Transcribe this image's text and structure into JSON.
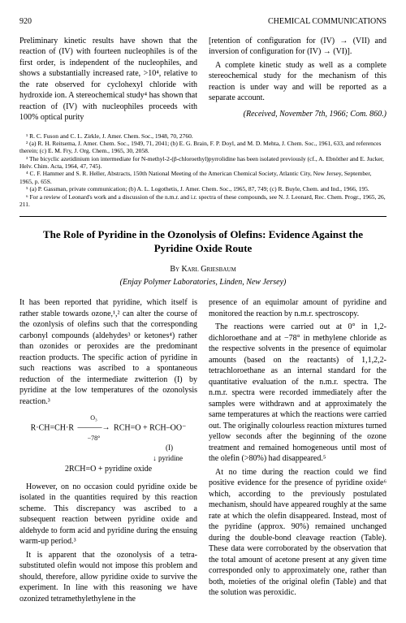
{
  "header": {
    "page": "920",
    "journal": "CHEMICAL COMMUNICATIONS"
  },
  "upper": {
    "left_p1": "Preliminary kinetic results have shown that the reaction of (IV) with fourteen nucleophiles is of the first order, is independent of the nucleophiles, and shows a substantially increased rate, >10⁴, relative to the rate observed for cyclohexyl chloride with hydroxide ion. A stereochemical study⁴ has shown that reaction of (IV) with nucleophiles proceeds with 100% optical purity",
    "right_p1": "[retention of configuration for (IV) → (VII) and inversion of configuration for (IV) → (VI)].",
    "right_p2": "A complete kinetic study as well as a complete stereochemical study for the mechanism of this reaction is under way and will be reported as a separate account.",
    "received": "(Received, November 7th, 1966; Com. 860.)"
  },
  "refs": {
    "r1": "¹ R. C. Fuson and C. L. Zirkle, J. Amer. Chem. Soc., 1948, 70, 2760.",
    "r2": "² (a) R. H. Reitsema, J. Amer. Chem. Soc., 1949, 71, 2041; (b) E. G. Brain, F. P. Doyl, and M. D. Mehta, J. Chem. Soc., 1961, 633, and references therein; (c) E. M. Fry, J. Org. Chem., 1965, 30, 2058.",
    "r3": "³ The bicyclic azetidinium ion intermediate for N-methyl-2-(β-chloroethyl)pyrrolidine has been isolated previously (cf., A. Ebnöther and E. Jucker, Helv. Chim. Acta, 1964, 47, 745).",
    "r4": "⁴ C. F. Hammer and S. R. Heller, Abstracts, 150th National Meeting of the American Chemical Society, Atlantic City, New Jersey, September, 1965, p. 65S.",
    "r5": "⁵ (a) P. Gassman, private communication; (b) A. L. Logothetis, J. Amer. Chem. Soc., 1965, 87, 749; (c) R. Buyle, Chem. and Ind., 1966, 195.",
    "r6": "⁶ For a review of Leonard's work and a discussion of the n.m.r. and i.r. spectra of these compounds, see N. J. Leonard, Rec. Chem. Progr., 1965, 26, 211."
  },
  "article": {
    "title": "The Role of Pyridine in the Ozonolysis of Olefins: Evidence Against the Pyridine Oxide Route",
    "author": "By Karl Griesbaum",
    "affil": "(Enjay Polymer Laboratories, Linden, New Jersey)",
    "left_p1": "It has been reported that pyridine, which itself is rather stable towards ozone,¹,² can alter the course of the ozonlysis of olefins such that the corresponding carbonyl compounds (aldehydes³ or ketones⁴) rather than ozonides or peroxides are the predominant reaction products. The specific action of pyridine in such reactions was ascribed to a spontaneous reduction of the intermediate zwitterion (I) by pyridine at the low temperatures of the ozonolysis reaction.³",
    "scheme_l1": "R·CH=CH·R ——→ RCH=O + RCH–OO⁻",
    "scheme_l1a": "O₃",
    "scheme_l1b": "−78°",
    "scheme_l2": "(I)",
    "scheme_l3": "↓ pyridine",
    "scheme_l4": "2RCH=O + pyridine oxide",
    "left_p2": "However, on no occasion could pyridine oxide be isolated in the quantities required by this reaction scheme. This discrepancy was ascribed to a subsequent reaction between pyridine oxide and aldehyde to form acid and pyridine during the ensuing warm-up period.³",
    "left_p3": "It is apparent that the ozonolysis of a tetra-substituted olefin would not impose this problem and should, therefore, allow pyridine oxide to survive the experiment. In line with this reasoning we have ozonized tetramethylethylene in the",
    "right_p1": "presence of an equimolar amount of pyridine and monitored the reaction by n.m.r. spectroscopy.",
    "right_p2": "The reactions were carried out at 0° in 1,2-dichloroethane and at −78° in methylene chloride as the respective solvents in the presence of equimolar amounts (based on the reactants) of 1,1,2,2-tetrachloroethane as an internal standard for the quantitative evaluation of the n.m.r. spectra. The n.m.r. spectra were recorded immediately after the samples were withdrawn and at approximately the same temperatures at which the reactions were carried out. The originally colourless reaction mixtures turned yellow seconds after the beginning of the ozone treatment and remained homogeneous until most of the olefin (>80%) had disappeared.⁵",
    "right_p3": "At no time during the reaction could we find positive evidence for the presence of pyridine oxide⁶ which, according to the previously postulated mechanism, should have appeared roughly at the same rate at which the olefin disappeared. Instead, most of the pyridine (approx. 90%) remained unchanged during the double-bond cleavage reaction (Table). These data were corroborated by the observation that the total amount of acetone present at any given time corresponded only to approximately one, rather than both, moieties of the original olefin (Table) and that the solution was peroxidic."
  }
}
